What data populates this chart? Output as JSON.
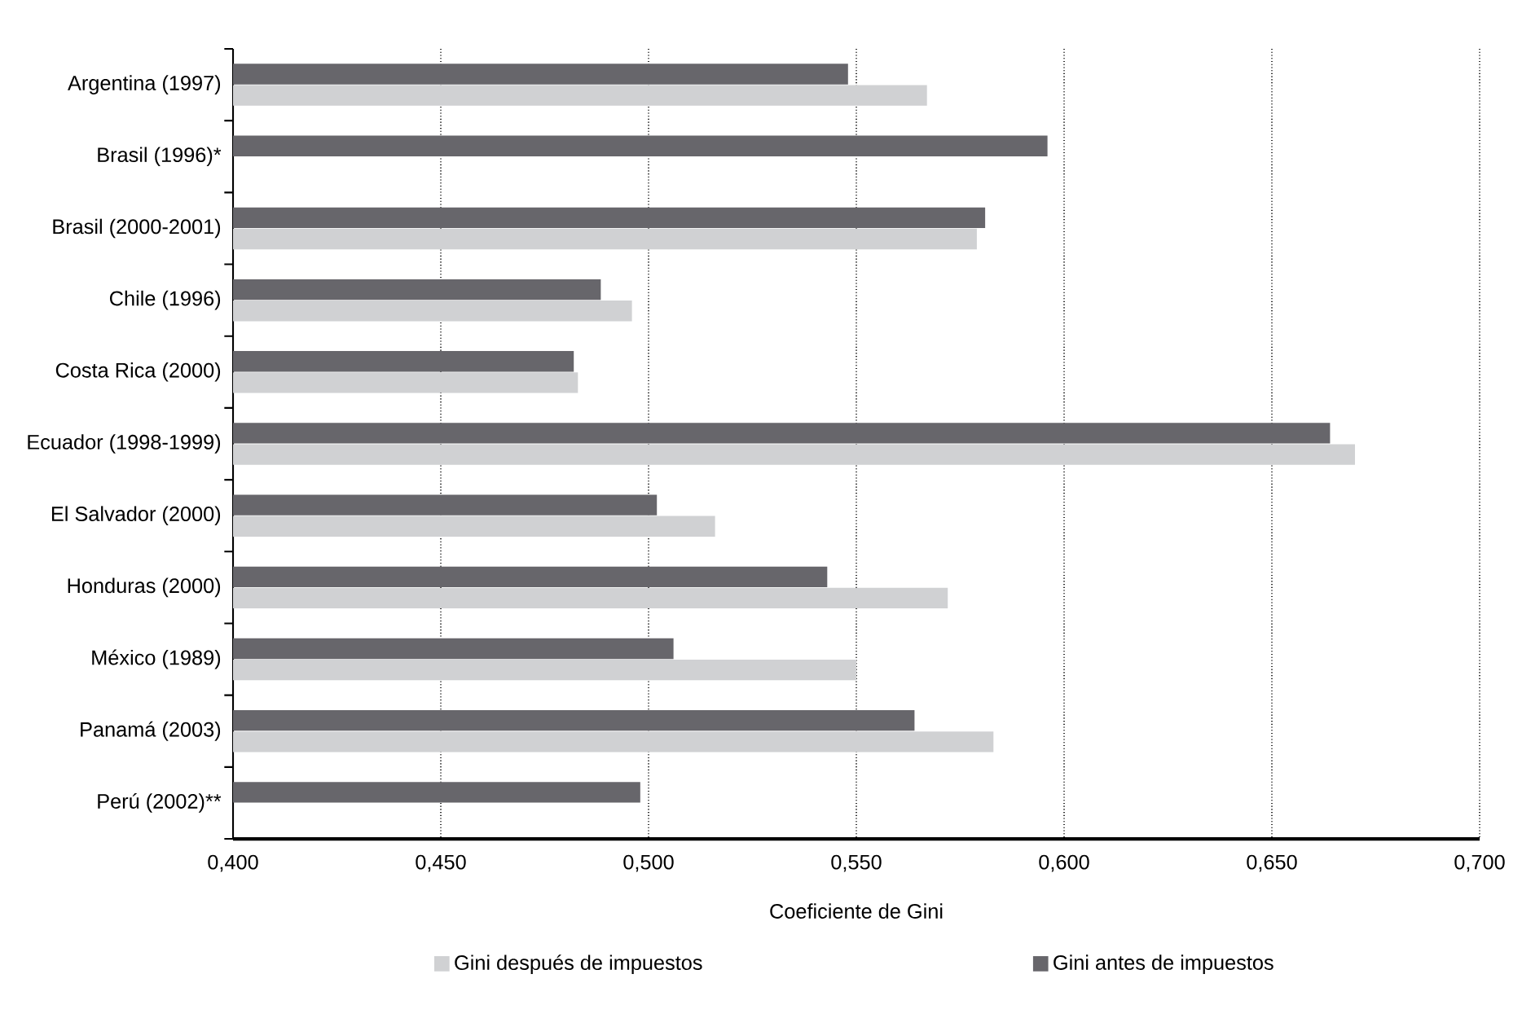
{
  "chart_data": {
    "type": "bar",
    "orientation": "horizontal",
    "xlabel": "Coeficiente de Gini",
    "categories": [
      "Argentina (1997)",
      "Brasil (1996)*",
      "Brasil (2000-2001)",
      "Chile (1996)",
      "Costa Rica (2000)",
      "Ecuador (1998-1999)",
      "El Salvador (2000)",
      "Honduras (2000)",
      "México (1989)",
      "Panamá (2003)",
      "Perú (2002)**"
    ],
    "series": [
      {
        "name": "Gini después de impuestos",
        "color": "#d0d1d3",
        "values": [
          0.567,
          null,
          0.579,
          0.496,
          0.483,
          0.67,
          0.516,
          0.572,
          0.55,
          0.583,
          null
        ]
      },
      {
        "name": "Gini antes de impuestos",
        "color": "#67666b",
        "values": [
          0.548,
          0.596,
          0.581,
          0.4885,
          0.482,
          0.664,
          0.502,
          0.543,
          0.506,
          0.564,
          0.498
        ]
      }
    ],
    "xlim": [
      0.4,
      0.7
    ],
    "xticks": [
      {
        "value": 0.4,
        "label": "0,400"
      },
      {
        "value": 0.45,
        "label": "0,450"
      },
      {
        "value": 0.5,
        "label": "0,500"
      },
      {
        "value": 0.55,
        "label": "0,550"
      },
      {
        "value": 0.6,
        "label": "0,600"
      },
      {
        "value": 0.65,
        "label": "0,650"
      },
      {
        "value": 0.7,
        "label": "0,700"
      }
    ],
    "grid": "x",
    "legend": "bottom"
  }
}
